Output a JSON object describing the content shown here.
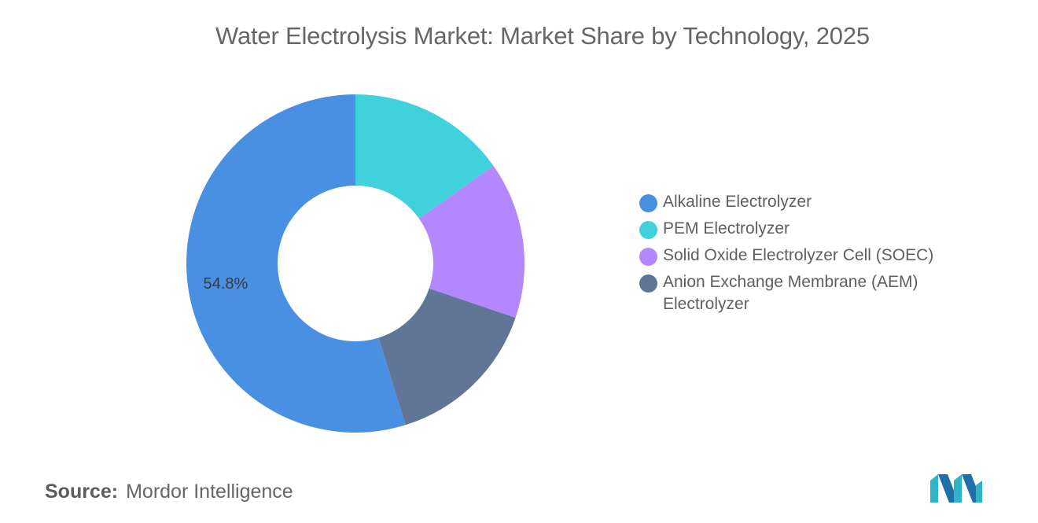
{
  "title": "Water Electrolysis Market: Market Share by Technology, 2025",
  "source": {
    "label": "Source:",
    "value": "Mordor Intelligence"
  },
  "colors": {
    "alkaline": "#4a90e2",
    "pem": "#3fd1dc",
    "soec": "#b388ff",
    "aem": "#617596"
  },
  "chart_data": {
    "type": "pie",
    "subtype": "donut",
    "title": "Water Electrolysis Market: Market Share by Technology, 2025",
    "legend_position": "right",
    "slices": [
      {
        "label": "Alkaline Electrolyzer",
        "value": 54.8,
        "color": "#4a90e2",
        "data_label": "54.8%"
      },
      {
        "label": "PEM Electrolyzer",
        "value": 15.2,
        "color": "#3fd1dc",
        "data_label": ""
      },
      {
        "label": "Solid Oxide Electrolyzer Cell (SOEC)",
        "value": 15.0,
        "color": "#b388ff",
        "data_label": ""
      },
      {
        "label": "Anion Exchange Membrane (AEM) Electrolyzer",
        "value": 15.0,
        "color": "#617596",
        "data_label": ""
      }
    ]
  }
}
